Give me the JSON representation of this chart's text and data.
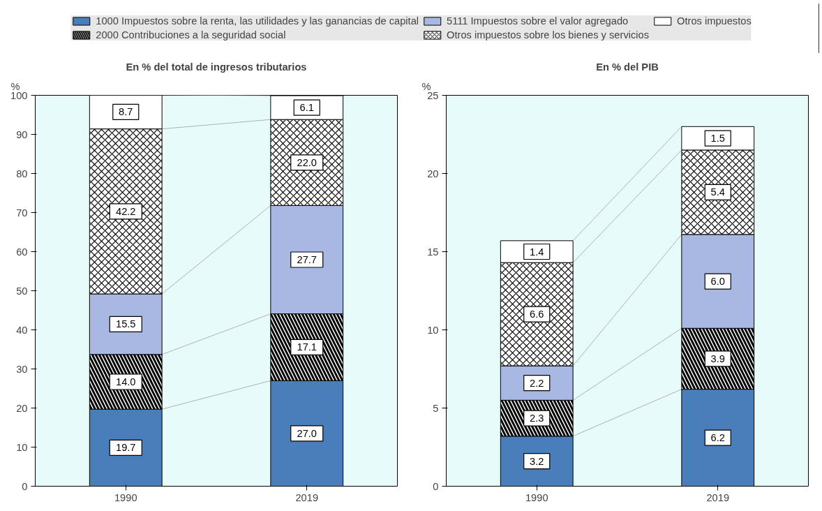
{
  "chart_data": [
    {
      "type": "bar",
      "stacked": true,
      "title": "En % del total de ingresos tributarios",
      "ylabel": "%",
      "categories": [
        "1990",
        "2019"
      ],
      "ylim": [
        0,
        100
      ],
      "yticks": [
        0,
        10,
        20,
        30,
        40,
        50,
        60,
        70,
        80,
        90,
        100
      ],
      "grid": false,
      "legend": "top",
      "series": [
        {
          "name": "1000 Impuestos sobre la renta, las utilidades y las ganancias de capital",
          "color": "#4a7ebb",
          "values": [
            19.7,
            27.0
          ],
          "value_labels": [
            "19.7",
            "27.0"
          ]
        },
        {
          "name": "2000 Contribuciones a la seguridad social",
          "color": "#ffffff",
          "values": [
            14.0,
            17.1
          ],
          "value_labels": [
            "14.0",
            "17.1"
          ]
        },
        {
          "name": "5111 Impuestos sobre el valor agregado",
          "color": "#a9b8e3",
          "values": [
            15.5,
            27.7
          ],
          "value_labels": [
            "15.5",
            "27.7"
          ]
        },
        {
          "name": "Otros impuestos sobre los bienes y servicios",
          "color": "#ffffff",
          "values": [
            42.2,
            22.0
          ],
          "value_labels": [
            "42.2",
            "22.0"
          ]
        },
        {
          "name": "Otros impuestos",
          "color": "#ffffff",
          "values": [
            8.7,
            6.1
          ],
          "value_labels": [
            "8.7",
            "6.1"
          ]
        }
      ]
    },
    {
      "type": "bar",
      "stacked": true,
      "title": "En % del PIB",
      "ylabel": "%",
      "categories": [
        "1990",
        "2019"
      ],
      "ylim": [
        0,
        25
      ],
      "yticks": [
        0,
        5,
        10,
        15,
        20,
        25
      ],
      "grid": false,
      "series": [
        {
          "color": "#4a7ebb",
          "values": [
            3.2,
            6.2
          ],
          "value_labels": [
            "3.2",
            "6.2"
          ]
        },
        {
          "color": "#ffffff",
          "values": [
            2.3,
            3.9
          ],
          "value_labels": [
            "2.3",
            "3.9"
          ]
        },
        {
          "color": "#a9b8e3",
          "values": [
            2.2,
            6.0
          ],
          "value_labels": [
            "2.2",
            "6.0"
          ]
        },
        {
          "color": "#ffffff",
          "values": [
            6.6,
            5.4
          ],
          "value_labels": [
            "6.6",
            "5.4"
          ]
        },
        {
          "color": "#ffffff",
          "values": [
            1.4,
            1.5
          ],
          "value_labels": [
            "1.4",
            "1.5"
          ]
        }
      ]
    }
  ]
}
